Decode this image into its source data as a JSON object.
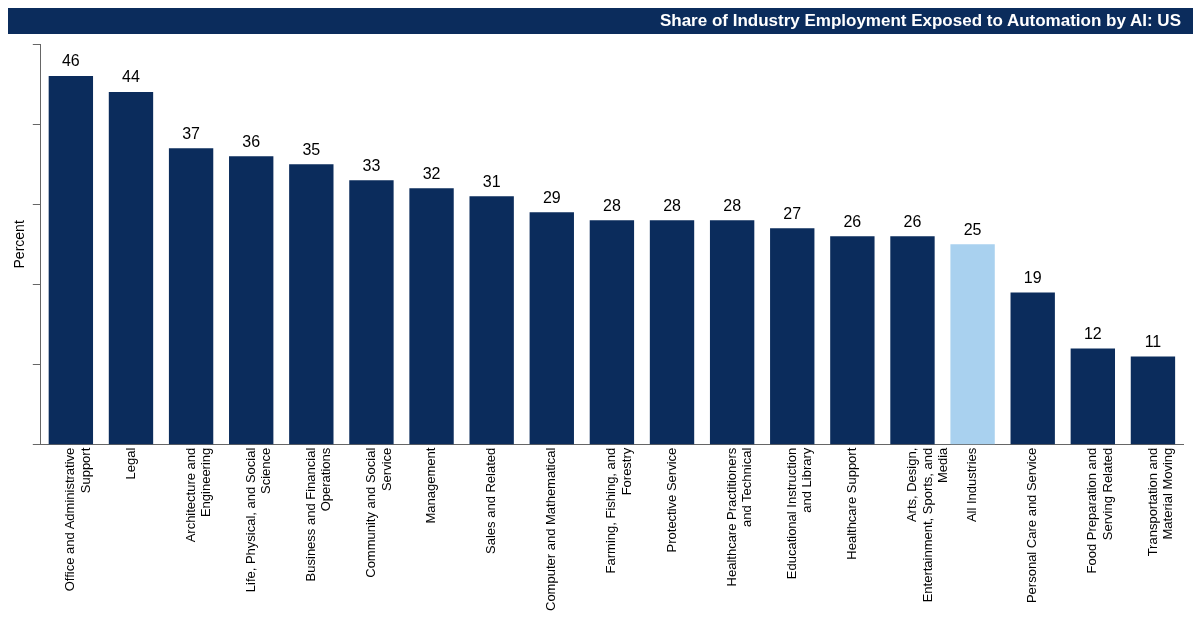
{
  "chart_data": {
    "type": "bar",
    "title": "Share of Industry Employment Exposed to Automation by AI: US",
    "ylabel": "Percent",
    "categories": [
      "Office and Administrative Support",
      "Legal",
      "Architecture and Engineering",
      "Life, Physical, and Social Science",
      "Business and Financial Operations",
      "Community and Social Service",
      "Management",
      "Sales and Related",
      "Computer and Mathematical",
      "Farming, Fishing, and Forestry",
      "Protective Service",
      "Healthcare Practitioners and Technical",
      "Educational Instruction and Library",
      "Healthcare Support",
      "Arts, Design, Entertainment, Sports, and Media",
      "All Industries",
      "Personal Care and Service",
      "Food Preparation and Serving Related",
      "Transportation and Material Moving"
    ],
    "values": [
      46,
      44,
      37,
      36,
      35,
      33,
      32,
      31,
      29,
      28,
      28,
      28,
      27,
      26,
      26,
      25,
      19,
      12,
      11
    ],
    "colors": [
      "#0b2c5c",
      "#0b2c5c",
      "#0b2c5c",
      "#0b2c5c",
      "#0b2c5c",
      "#0b2c5c",
      "#0b2c5c",
      "#0b2c5c",
      "#0b2c5c",
      "#0b2c5c",
      "#0b2c5c",
      "#0b2c5c",
      "#0b2c5c",
      "#0b2c5c",
      "#0b2c5c",
      "#a9d1ef",
      "#0b2c5c",
      "#0b2c5c",
      "#0b2c5c"
    ],
    "ylim": [
      0,
      50
    ],
    "yticks": [
      {
        "value": 0,
        "label": null
      },
      {
        "value": 10,
        "label": null
      },
      {
        "value": 20,
        "label": null
      },
      {
        "value": 30,
        "label": null
      },
      {
        "value": 40,
        "label": null
      },
      {
        "value": 50,
        "label": null
      }
    ],
    "tick_labels": "x",
    "data_labels": true,
    "legend": false
  }
}
